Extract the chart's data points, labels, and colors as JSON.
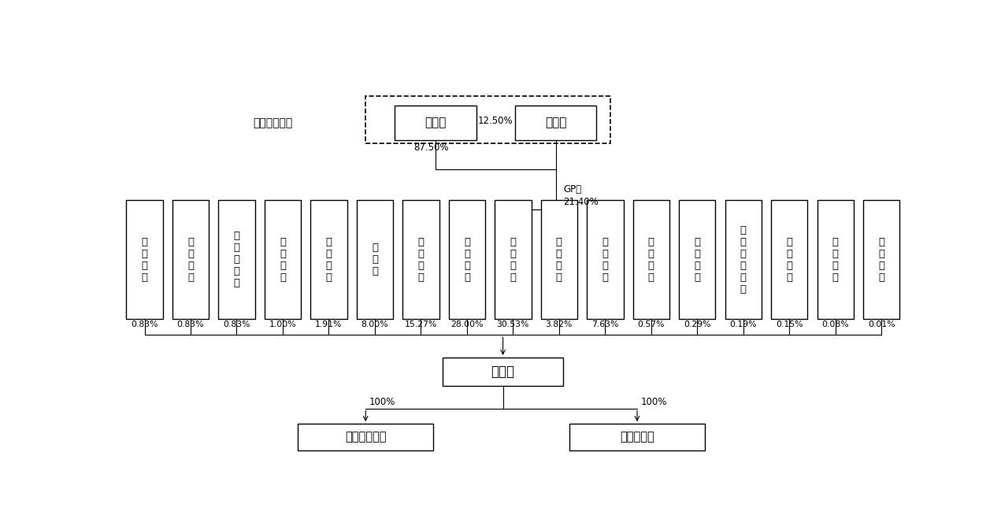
{
  "title_label": "实际控制人：",
  "liu_name": "刘建国",
  "kong_name": "孔金凤",
  "liu_pct": "87.50%",
  "kong_pct": "12.50%",
  "gp_label": "GP，\n21.40%",
  "middle_nodes": [
    {
      "name": "珠\n海\n泉\n和",
      "pct": "0.83%"
    },
    {
      "name": "北\n京\n高\n瓴",
      "pct": "0.83%"
    },
    {
      "name": "厦\n门\n航\n力\n恒",
      "pct": "0.83%"
    },
    {
      "name": "珠\n海\n楚\n恒",
      "pct": "1.00%"
    },
    {
      "name": "宁\n波\n澳\n阳",
      "pct": "1.91%"
    },
    {
      "name": "董\n晓\n栗",
      "pct": "8.00%"
    },
    {
      "name": "彬\n景\n投\n资",
      "pct": "15.27%"
    },
    {
      "name": "三\n一\n重\n能",
      "pct": "28.00%"
    },
    {
      "name": "南\n京\n晨\n瑞",
      "pct": "30.53%"
    },
    {
      "name": "无\n锡\n德\n同",
      "pct": "3.82%"
    },
    {
      "name": "海\n宁\n华\n能",
      "pct": "7.63%"
    },
    {
      "name": "东\n方\n氢\n能",
      "pct": "0.57%"
    },
    {
      "name": "无\n锡\n云\n林",
      "pct": "0.29%"
    },
    {
      "name": "无\n锡\n高\n投\n毅\n达",
      "pct": "0.19%"
    },
    {
      "name": "嘉\n兴\n宸\n锦",
      "pct": "0.15%"
    },
    {
      "name": "南\n京\n合\n翼",
      "pct": "0.08%"
    },
    {
      "name": "海\n宁\n慧\n仁",
      "pct": "0.01%"
    }
  ],
  "main_company": "德力佳",
  "sub1_name": "德力佳增速机",
  "sub2_name": "汕头德力佳",
  "sub_pct": "100%",
  "bg_color": "#ffffff",
  "border_color": "#000000",
  "text_color": "#000000"
}
